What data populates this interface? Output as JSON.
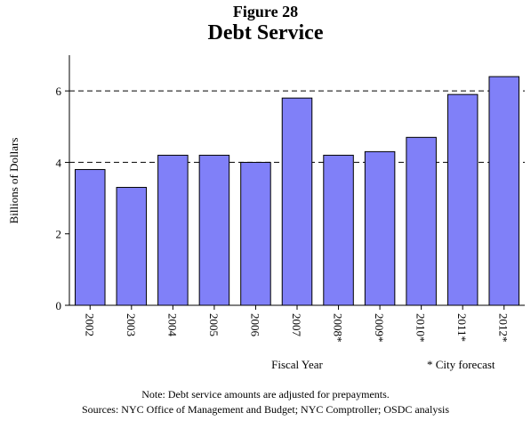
{
  "figure_label": "Figure 28",
  "forecast_note": "* City forecast",
  "note": "Note: Debt service amounts are adjusted for prepayments.",
  "sources": "Sources: NYC Office of Management and Budget; NYC Comptroller; OSDC analysis",
  "colors": {
    "bar_fill": "#8080f8",
    "bar_stroke": "#000000"
  },
  "chart_data": {
    "type": "bar",
    "title": "Debt Service",
    "xlabel": "Fiscal Year",
    "ylabel": "Billions of Dollars",
    "categories": [
      "2002",
      "2003",
      "2004",
      "2005",
      "2006",
      "2007",
      "2008*",
      "2009*",
      "2010*",
      "2011*",
      "2012*"
    ],
    "values": [
      3.8,
      3.3,
      4.2,
      4.2,
      4.0,
      5.8,
      4.2,
      4.3,
      4.7,
      5.9,
      6.4
    ],
    "ylim": [
      0,
      7
    ],
    "yticks": [
      0,
      2,
      4,
      6
    ],
    "dashed_gridlines": [
      4,
      6
    ]
  }
}
